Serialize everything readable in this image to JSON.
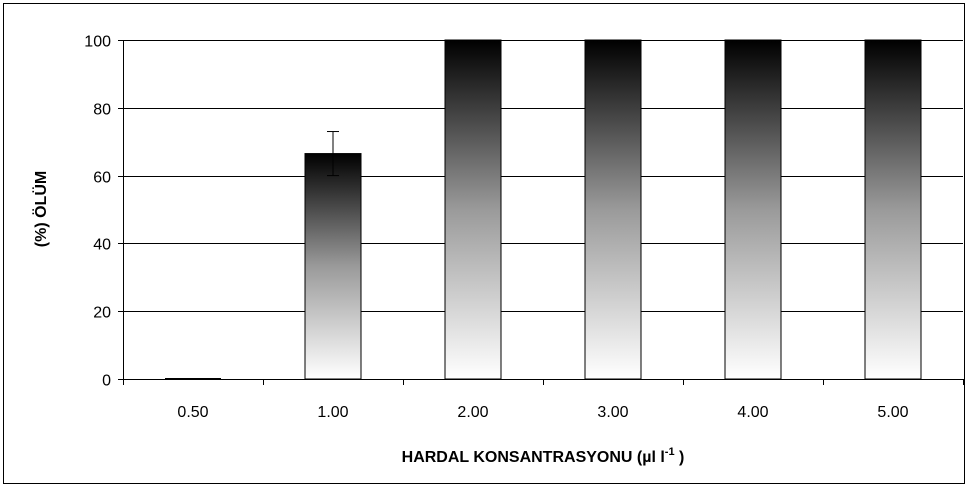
{
  "chart_data": {
    "type": "bar",
    "categories": [
      "0.50",
      "1.00",
      "2.00",
      "3.00",
      "4.00",
      "5.00"
    ],
    "values": [
      0,
      66.5,
      100,
      100,
      100,
      100
    ],
    "error_bars": [
      null,
      [
        60,
        73
      ],
      null,
      null,
      null,
      null
    ],
    "xlabel": {
      "main": "HARDAL KONSANTRASYONU (µl l",
      "superscript": "-1",
      "close": " )"
    },
    "ylabel": "(%) ÖLÜM",
    "ylim": [
      0,
      100
    ],
    "yticks": [
      0,
      20,
      40,
      60,
      80,
      100
    ],
    "grid": true,
    "legend": "none",
    "bar_fill": "vertical gradient light-to-dark",
    "colors": {
      "bar_top": "#000000",
      "bar_bottom": "#ffffff",
      "gridline": "#000000",
      "axis": "#000000"
    }
  }
}
